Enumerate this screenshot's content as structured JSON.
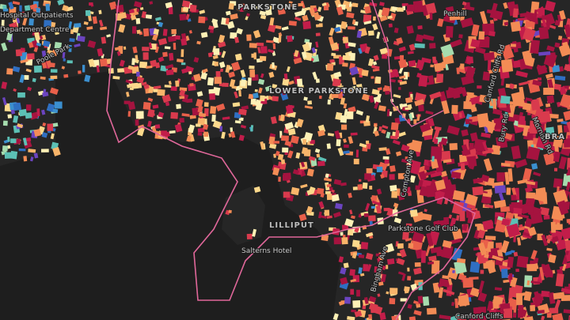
{
  "map": {
    "labels": [
      "Hospital Outpatients",
      "Department Centre",
      "Poole Park",
      "PARKSTONE",
      "LOWER PARKSTONE",
      "Penhill",
      "Canford Cliffs Rd",
      "Mornish Rd",
      "Bury Rd",
      "Compton Ave",
      "Parkstone Golf Club",
      "Salterns Hotel",
      "Bingham Ave",
      "LILLIPUT",
      "Canford Cliffs",
      "BRA"
    ]
  }
}
